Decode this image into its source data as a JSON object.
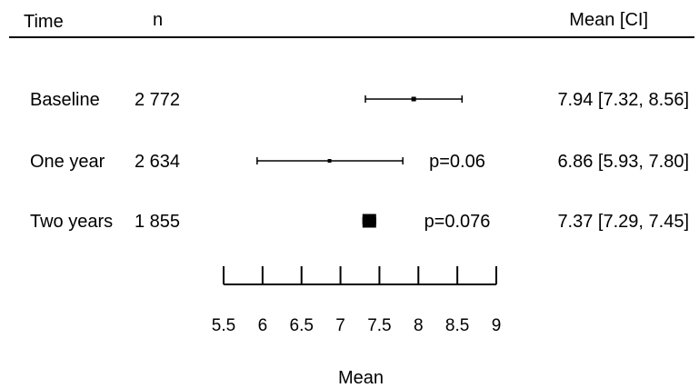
{
  "chart_data": {
    "type": "forest",
    "headers": {
      "time": "Time",
      "n": "n",
      "ci": "Mean [CI]"
    },
    "rows": [
      {
        "label": "Baseline",
        "n": "2 772",
        "mean": 7.94,
        "lower": 7.32,
        "upper": 8.56,
        "p": "",
        "ci_text": "7.94 [7.32, 8.56]"
      },
      {
        "label": "One year",
        "n": "2 634",
        "mean": 6.86,
        "lower": 5.93,
        "upper": 7.8,
        "p": "p=0.06",
        "ci_text": "6.86 [5.93, 7.80]"
      },
      {
        "label": "Two years",
        "n": "1 855",
        "mean": 7.37,
        "lower": 7.29,
        "upper": 7.45,
        "p": "p=0.076",
        "ci_text": "7.37 [7.29, 7.45]"
      }
    ],
    "xlabel": "Mean",
    "xlim": [
      5.5,
      9
    ],
    "ticks": [
      5.5,
      6,
      6.5,
      7,
      7.5,
      8,
      8.5,
      9
    ],
    "tick_labels": [
      "5.5",
      "6",
      "6.5",
      "7",
      "7.5",
      "8",
      "8.5",
      "9"
    ]
  }
}
